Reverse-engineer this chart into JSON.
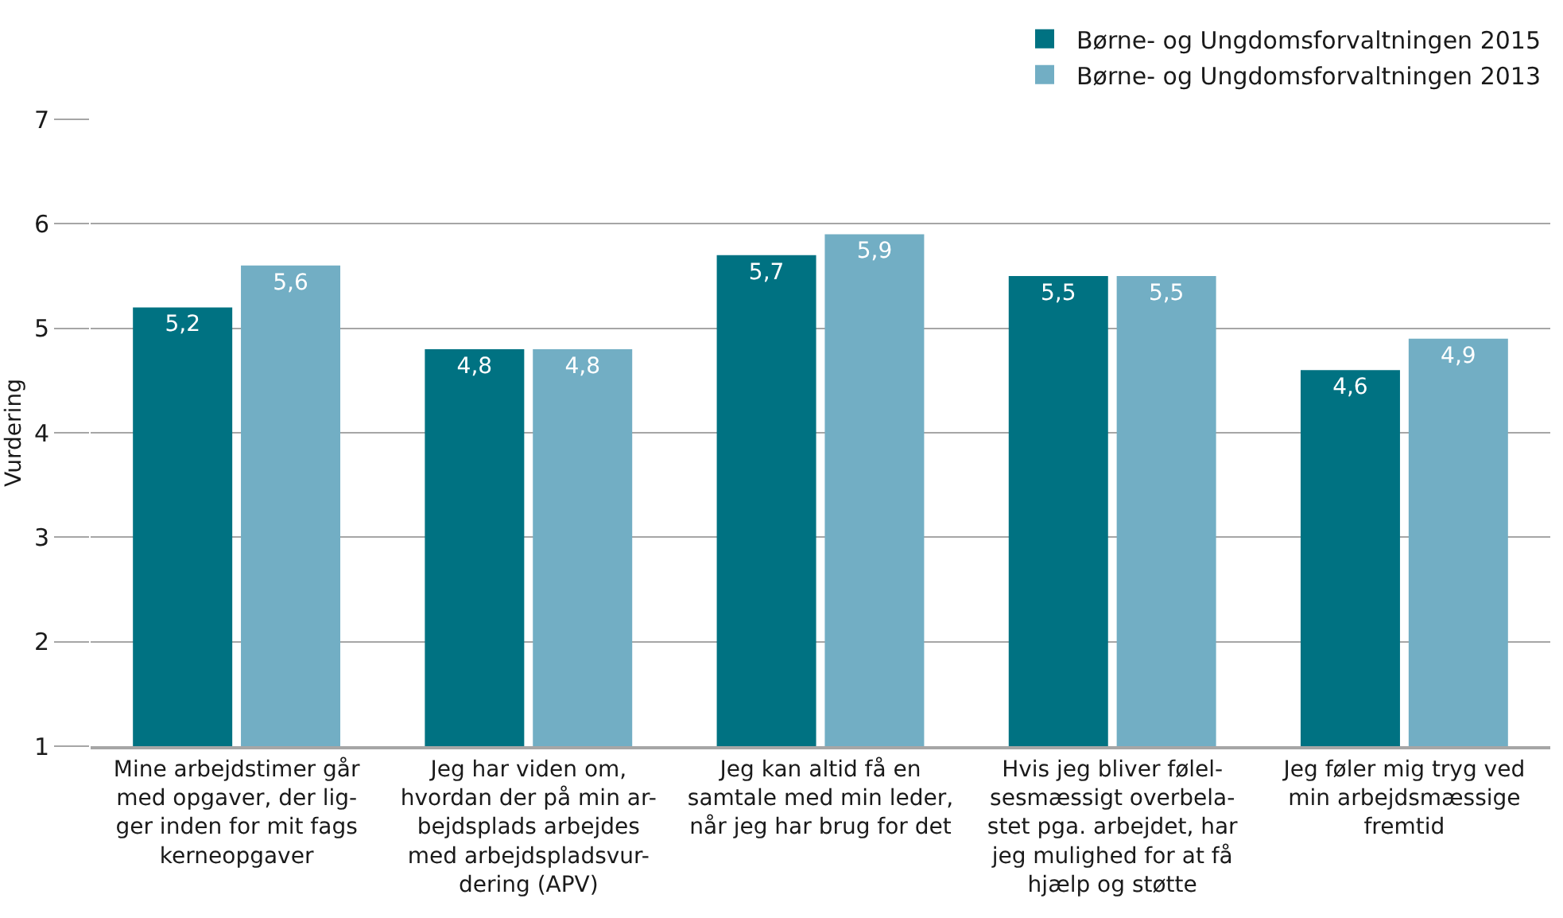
{
  "chart_data": {
    "type": "bar",
    "ylabel": "Vurdering",
    "categories": [
      "Mine arbejdstimer går\nmed opgaver, der lig-\nger inden for mit fags\nkerneopgaver",
      "Jeg har viden om,\nhvordan der på min ar-\nbejdsplads arbejdes\nmed arbejdspladsvur-\ndering (APV)",
      "Jeg kan altid få en\nsamtale med min leder,\nnår jeg har brug for det",
      "Hvis jeg bliver følel-\nsesmæssigt overbela-\nstet pga. arbejdet, har\njeg mulighed for at få\nhjælp og støtte",
      "Jeg føler mig tryg ved\nmin arbejdsmæssige\nfremtid"
    ],
    "series": [
      {
        "name": "Børne- og Ungdomsforvaltningen 2015",
        "color": "#007282",
        "values": [
          5.2,
          4.8,
          5.7,
          5.5,
          4.6
        ],
        "value_labels": [
          "5,2",
          "4,8",
          "5,7",
          "5,5",
          "4,6"
        ]
      },
      {
        "name": "Børne- og Ungdomsforvaltningen 2013",
        "color": "#72aec4",
        "values": [
          5.6,
          4.8,
          5.9,
          5.5,
          4.9
        ],
        "value_labels": [
          "5,6",
          "4,8",
          "5,9",
          "5,5",
          "4,9"
        ]
      }
    ],
    "ylim": [
      1,
      7
    ],
    "yticks": [
      1,
      2,
      3,
      4,
      5,
      6,
      7
    ],
    "grid": "y",
    "legend": "top right"
  }
}
